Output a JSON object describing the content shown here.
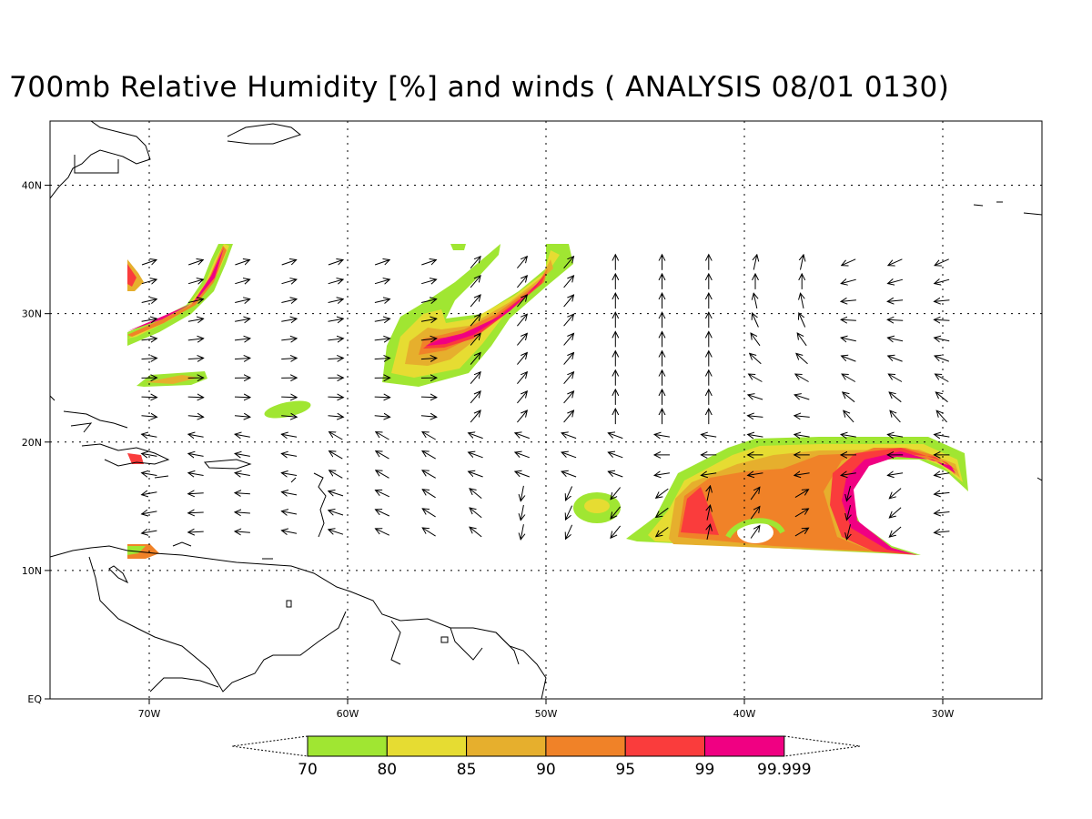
{
  "title": "700mb Relative Humidity [%] and winds ( ANALYSIS 08/01 0130)",
  "axes": {
    "lon_range": [
      -75,
      -25
    ],
    "lat_range": [
      0,
      45
    ],
    "lon_ticks": [
      {
        "value": -70,
        "label": "70W"
      },
      {
        "value": -60,
        "label": "60W"
      },
      {
        "value": -50,
        "label": "50W"
      },
      {
        "value": -40,
        "label": "40W"
      },
      {
        "value": -30,
        "label": "30W"
      }
    ],
    "lat_ticks": [
      {
        "value": 0,
        "label": "EQ"
      },
      {
        "value": 10,
        "label": "10N"
      },
      {
        "value": 20,
        "label": "20N"
      },
      {
        "value": 30,
        "label": "30N"
      },
      {
        "value": 40,
        "label": "40N"
      }
    ],
    "grid": "dotted"
  },
  "colorbar": {
    "levels": [
      "70",
      "80",
      "85",
      "90",
      "95",
      "99",
      "99.999"
    ],
    "colors": [
      "#a0e632",
      "#e6dc32",
      "#e6af2d",
      "#f08228",
      "#fa3c3c",
      "#f00082"
    ]
  }
}
